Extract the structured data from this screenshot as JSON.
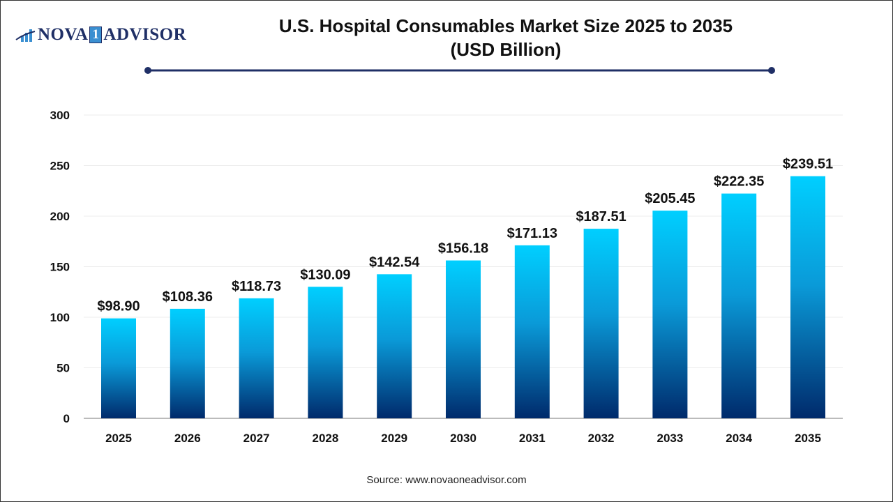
{
  "logo": {
    "text_left": "NOVA",
    "text_digit": "1",
    "text_right": "ADVISOR"
  },
  "colors": {
    "bar_top": "#00cfff",
    "bar_bottom": "#002a6b",
    "title_rule": "#1f2f66"
  },
  "chart_data": {
    "type": "bar",
    "title_line1": "U.S. Hospital Consumables Market Size 2025 to 2035",
    "title_line2": "(USD Billion)",
    "categories": [
      "2025",
      "2026",
      "2027",
      "2028",
      "2029",
      "2030",
      "2031",
      "2032",
      "2033",
      "2034",
      "2035"
    ],
    "values": [
      98.9,
      108.36,
      118.73,
      130.09,
      142.54,
      156.18,
      171.13,
      187.51,
      205.45,
      222.35,
      239.51
    ],
    "data_labels": [
      "$98.90",
      "$108.36",
      "$118.73",
      "$130.09",
      "$142.54",
      "$156.18",
      "$171.13",
      "$187.51",
      "$205.45",
      "$222.35",
      "$239.51"
    ],
    "yticks": [
      "0",
      "50",
      "100",
      "150",
      "200",
      "250",
      "300"
    ],
    "ylim": [
      0,
      300
    ],
    "grid": true,
    "xlabel": "",
    "ylabel": ""
  },
  "source": "Source: www.novaoneadvisor.com"
}
